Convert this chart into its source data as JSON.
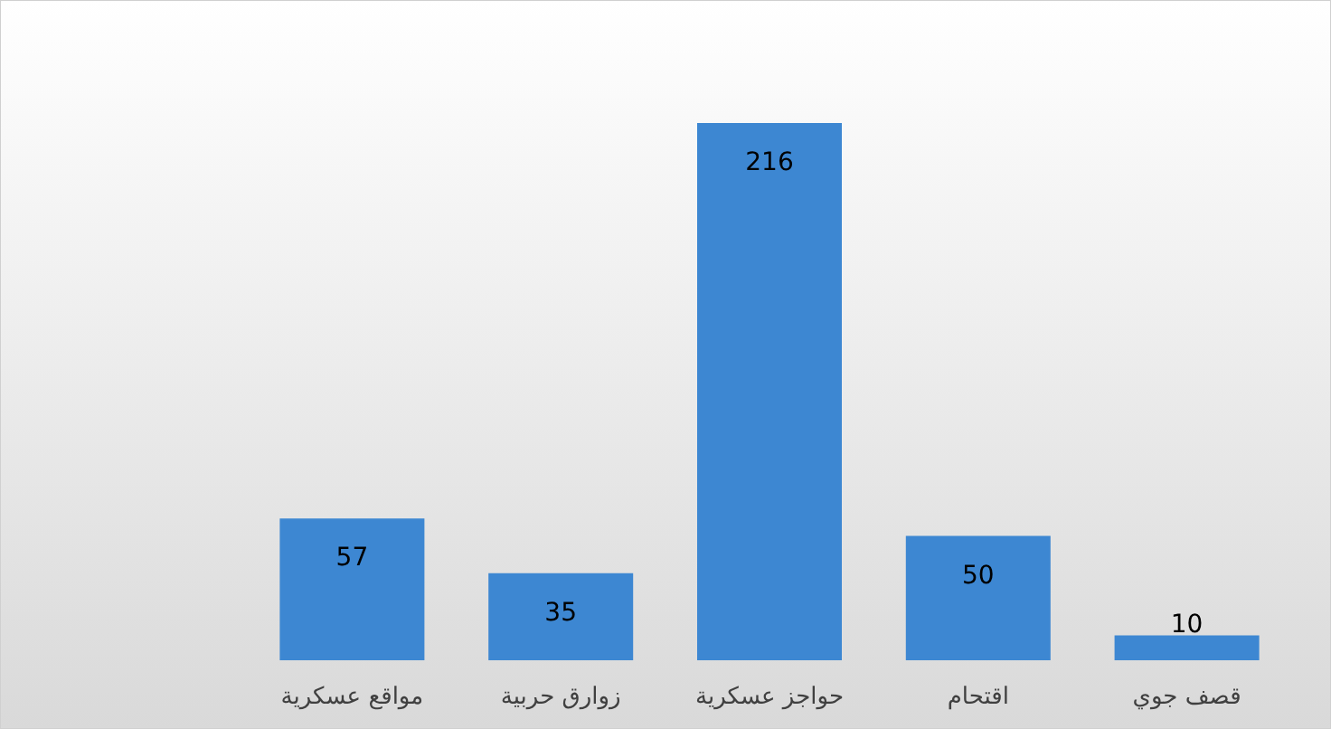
{
  "chart_data": {
    "type": "bar",
    "categories": [
      "مواقع عسكرية",
      "زوارق حربية",
      "حواجز عسكرية",
      "اقتحام",
      "قصف جوي"
    ],
    "values": [
      57,
      35,
      216,
      50,
      10
    ],
    "color": "#3d87d2",
    "data_labels": true
  }
}
